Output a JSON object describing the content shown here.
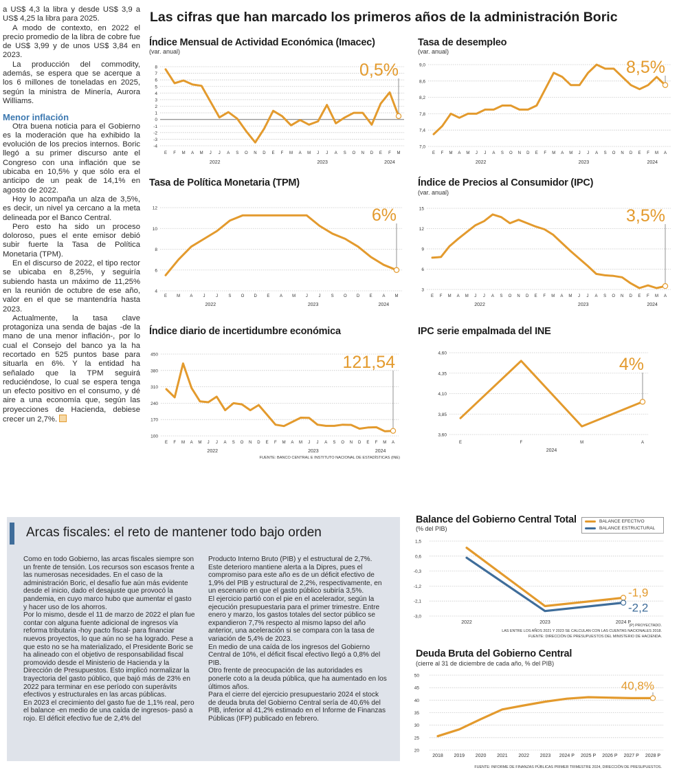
{
  "article": {
    "paragraphs_top": [
      "a US$ 4,3 la libra y desde US$ 3,9 a US$ 4,25 la libra para 2025.",
      "A modo de contexto, en 2022 el precio promedio de la libra de cobre fue de US$ 3,99 y de unos US$ 3,84 en 2023.",
      "La producción del commodity, además, se espera que se acerque a los 6 millones de toneladas en 2025, según la ministra de Minería, Aurora Williams."
    ],
    "subheading": "Menor inflación",
    "paragraphs_bottom": [
      "Otra buena noticia para el Gobierno es la moderación que ha exhibido la evolución de los precios internos. Boric llegó a su primer discurso ante el Congreso con una inflación que se ubicaba en 10,5% y que sólo era el anticipo de un peak de 14,1% en agosto de 2022.",
      "Hoy lo acompaña un alza de 3,5%, es decir, un nivel ya cercano a la meta delineada por el Banco Central.",
      "Pero esto ha sido un proceso doloroso, pues el ente emisor debió subir fuerte la Tasa de Política Monetaria (TPM).",
      "En el discurso de 2022, el tipo rector se ubicaba en 8,25%, y seguiría subiendo hasta un máximo de 11,25% en la reunión de octubre de ese año, valor en el que se mantendría hasta 2023.",
      "Actualmente, la tasa clave protagoniza una senda de bajas -de la mano de una menor inflación-, por lo cual el Consejo del banco ya la ha recortado en 525 puntos base para situarla en 6%. Y la entidad ha señalado que la TPM seguirá reduciéndose, lo cual se espera tenga un efecto positivo en el consumo, y dé aire a una economía que, según las proyecciones de Hacienda, debiese crecer un 2,7%."
    ]
  },
  "main_title": "Las cifras que han marcado los primeros años de la administración Boric",
  "source_top": "FUENTE: BANCO CENTRAL E INSTITUTO NACIONAL DE ESTADÍSTICAS (INE)",
  "fiscal": {
    "title": "Arcas fiscales: el reto de mantener todo bajo orden",
    "col1": [
      "Como en todo Gobierno, las arcas fiscales siempre son un frente de tensión. Los recursos son escasos frente a las numerosas necesidades. En el caso de la administración Boric, el desafío fue aún más evidente desde el inicio, dado el desajuste que provocó la pandemia, en cuyo marco hubo que aumentar el gasto y hacer uso de los ahorros.",
      "Por lo mismo, desde el 11 de marzo de 2022 el plan fue contar con alguna fuente adicional de ingresos vía reforma tributaria -hoy pacto fiscal- para financiar nuevos proyectos, lo que aún no se ha logrado. Pese a que esto no se ha materializado, el Presidente Boric se ha alineado con el objetivo de responsabilidad fiscal promovido desde el Ministerio de Hacienda y la Dirección de Presupuestos. Esto implicó normalizar la trayectoria del gasto público, que bajó más de 23% en 2022 para terminar en ese período con superávits efectivos y estructurales en las arcas públicas.",
      "En 2023 el crecimiento del gasto fue de 1,1% real, pero el balance -en medio de una caída de ingresos- pasó a rojo. El déficit efectivo fue de 2,4% del"
    ],
    "col2": [
      "Producto Interno Bruto (PIB) y el estructural de 2,7%. Este deterioro mantiene alerta a la Dipres, pues el compromiso para este año es de un déficit efectivo de 1,9% del PIB y estructural de 2,2%, respectivamente, en un escenario en que el gasto público subiría 3,5%.",
      "El ejercicio partió con el pie en el acelerador, según la ejecución presupuestaria para el primer trimestre. Entre enero y marzo, los gastos totales del sector público se expandieron 7,7% respecto al mismo lapso del año anterior, una aceleración si se compara con la tasa de variación de 5,4% de 2023.",
      "En medio de una caída de los ingresos del Gobierno Central de 10%, el déficit fiscal efectivo llegó a 0,8% del PIB.",
      "Otro frente de preocupación de las autoridades es ponerle coto a la deuda pública, que ha aumentado en los últimos años.",
      "Para el cierre del ejercicio presupuestario 2024 el stock de deuda bruta del Gobierno Central sería de 40,6% del PIB, inferior al 41,2% estimado en el Informe de Finanzas Públicas (IFP) publicado en febrero."
    ]
  },
  "colors": {
    "orange": "#e39a2d",
    "blue": "#3f6d9a",
    "box": "#dfe3ea",
    "subheading": "#3c78b0"
  },
  "chart_data": [
    {
      "type": "line",
      "title": "Índice Mensual de Actividad Económica (Imacec)",
      "subtitle": "(var. anual)",
      "categories": [
        "E",
        "F",
        "M",
        "A",
        "M",
        "J",
        "J",
        "A",
        "S",
        "O",
        "N",
        "D",
        "E",
        "F",
        "M",
        "A",
        "M",
        "J",
        "J",
        "A",
        "S",
        "O",
        "N",
        "D",
        "E",
        "F",
        "M"
      ],
      "year_groups": [
        {
          "label": "2022",
          "from": 0,
          "to": 11
        },
        {
          "label": "2023",
          "from": 12,
          "to": 23
        },
        {
          "label": "2024",
          "from": 24,
          "to": 26
        }
      ],
      "yticks": [
        "8",
        "7",
        "6",
        "5",
        "4",
        "3",
        "2",
        "1",
        "0",
        "-1",
        "-2",
        "-3",
        "-4"
      ],
      "ylim": [
        -4,
        8
      ],
      "zero_line": true,
      "series": [
        {
          "values": [
            7.6,
            5.5,
            5.9,
            5.3,
            5.1,
            2.7,
            0.3,
            1.1,
            0.1,
            -1.8,
            -3.5,
            -1.4,
            1.3,
            0.5,
            -0.9,
            -0.1,
            -0.8,
            -0.3,
            2.2,
            -0.6,
            0.3,
            1.0,
            1.0,
            -0.8,
            2.4,
            4.1,
            0.5
          ],
          "color": "#e39a2d"
        }
      ],
      "highlight": "0,5%"
    },
    {
      "type": "line",
      "title": "Tasa de desempleo",
      "subtitle": "(var. anual)",
      "categories": [
        "E",
        "F",
        "M",
        "A",
        "M",
        "J",
        "J",
        "A",
        "S",
        "O",
        "N",
        "D",
        "E",
        "F",
        "M",
        "A",
        "M",
        "J",
        "J",
        "A",
        "S",
        "O",
        "N",
        "D",
        "E",
        "F",
        "M",
        "A"
      ],
      "year_groups": [
        {
          "label": "2022",
          "from": 0,
          "to": 11
        },
        {
          "label": "2023",
          "from": 12,
          "to": 23
        },
        {
          "label": "2024",
          "from": 24,
          "to": 27
        }
      ],
      "yticks": [
        "9,0",
        "8,6",
        "8,2",
        "7,8",
        "7,4",
        "7,0"
      ],
      "ylim": [
        7.0,
        9.0
      ],
      "series": [
        {
          "values": [
            7.3,
            7.5,
            7.8,
            7.7,
            7.8,
            7.8,
            7.9,
            7.9,
            8.0,
            8.0,
            7.9,
            7.9,
            8.0,
            8.4,
            8.8,
            8.7,
            8.5,
            8.5,
            8.8,
            9.0,
            8.9,
            8.9,
            8.7,
            8.5,
            8.4,
            8.5,
            8.7,
            8.5
          ],
          "color": "#e39a2d"
        }
      ],
      "highlight": "8,5%"
    },
    {
      "type": "line",
      "title": "Tasa de Política Monetaria (TPM)",
      "subtitle": "",
      "categories": [
        "E",
        "M",
        "A",
        "J",
        "J",
        "S",
        "O",
        "D",
        "E",
        "A",
        "M",
        "J",
        "J",
        "S",
        "O",
        "D",
        "E",
        "A",
        "M"
      ],
      "year_groups": [
        {
          "label": "2022",
          "from": 0,
          "to": 7
        },
        {
          "label": "2023",
          "from": 8,
          "to": 15
        },
        {
          "label": "2024",
          "from": 16,
          "to": 18
        }
      ],
      "yticks": [
        "12",
        "10",
        "8",
        "6",
        "4"
      ],
      "ylim": [
        4,
        12
      ],
      "series": [
        {
          "values": [
            5.5,
            7.0,
            8.25,
            9.0,
            9.75,
            10.75,
            11.25,
            11.25,
            11.25,
            11.25,
            11.25,
            11.25,
            10.25,
            9.5,
            9.0,
            8.25,
            7.25,
            6.5,
            6.0
          ],
          "color": "#e39a2d"
        }
      ],
      "highlight": "6%"
    },
    {
      "type": "line",
      "title": "Índice de Precios al Consumidor (IPC)",
      "subtitle": "(var. anual)",
      "categories": [
        "E",
        "F",
        "M",
        "A",
        "M",
        "J",
        "J",
        "A",
        "S",
        "O",
        "N",
        "D",
        "E",
        "F",
        "M",
        "A",
        "M",
        "J",
        "J",
        "A",
        "S",
        "O",
        "N",
        "D",
        "E",
        "F",
        "M",
        "A"
      ],
      "year_groups": [
        {
          "label": "2022",
          "from": 0,
          "to": 11
        },
        {
          "label": "2023",
          "from": 12,
          "to": 23
        },
        {
          "label": "2024",
          "from": 24,
          "to": 27
        }
      ],
      "yticks": [
        "15",
        "12",
        "9",
        "6",
        "3"
      ],
      "ylim": [
        3,
        15
      ],
      "series": [
        {
          "values": [
            7.7,
            7.8,
            9.4,
            10.5,
            11.5,
            12.5,
            13.1,
            14.1,
            13.7,
            12.8,
            13.3,
            12.8,
            12.3,
            11.9,
            11.1,
            9.9,
            8.7,
            7.6,
            6.5,
            5.3,
            5.1,
            5.0,
            4.8,
            3.9,
            3.2,
            3.6,
            3.2,
            3.5
          ],
          "color": "#e39a2d"
        }
      ],
      "highlight": "3,5%"
    },
    {
      "type": "line",
      "title": "Índice diario de incertidumbre económica",
      "subtitle": "",
      "categories": [
        "E",
        "F",
        "M",
        "A",
        "M",
        "J",
        "J",
        "A",
        "S",
        "O",
        "N",
        "D",
        "E",
        "F",
        "M",
        "A",
        "M",
        "J",
        "J",
        "A",
        "S",
        "O",
        "N",
        "D",
        "E",
        "F",
        "M",
        "A"
      ],
      "year_groups": [
        {
          "label": "2022",
          "from": 0,
          "to": 11
        },
        {
          "label": "2023",
          "from": 12,
          "to": 23
        },
        {
          "label": "2024",
          "from": 24,
          "to": 27
        }
      ],
      "yticks": [
        "450",
        "380",
        "310",
        "240",
        "170",
        "100"
      ],
      "ylim": [
        100,
        450
      ],
      "series": [
        {
          "values": [
            300,
            265,
            410,
            305,
            248,
            244,
            268,
            210,
            240,
            235,
            210,
            232,
            190,
            148,
            142,
            160,
            178,
            177,
            148,
            143,
            143,
            148,
            147,
            131,
            136,
            137,
            120,
            121.54
          ],
          "color": "#e39a2d"
        }
      ],
      "highlight": "121,54"
    },
    {
      "type": "line",
      "title": "IPC serie empalmada del INE",
      "subtitle": "",
      "categories": [
        "E",
        "F",
        "M",
        "A"
      ],
      "year_groups": [
        {
          "label": "2024",
          "from": 0,
          "to": 3
        }
      ],
      "yticks": [
        "4,60",
        "4,35",
        "4,10",
        "3,85",
        "3,60"
      ],
      "ylim": [
        3.6,
        4.6
      ],
      "series": [
        {
          "values": [
            3.8,
            4.5,
            3.7,
            4.0
          ],
          "color": "#e39a2d"
        }
      ],
      "highlight": "4%"
    },
    {
      "type": "line",
      "title": "Balance del Gobierno Central Total",
      "subtitle": "(% del PIB)",
      "categories": [
        "2022",
        "2023",
        "2024 P"
      ],
      "yticks": [
        "1,5",
        "0,6",
        "-0,3",
        "-1,2",
        "-2,1",
        "-3,0"
      ],
      "ylim": [
        -3.0,
        1.5
      ],
      "series": [
        {
          "name": "BALANCE EFECTIVO",
          "values": [
            1.1,
            -2.4,
            -1.9
          ],
          "color": "#e39a2d",
          "end_label": "-1,9"
        },
        {
          "name": "BALANCE ESTRUCTURAL",
          "values": [
            0.5,
            -2.7,
            -2.2
          ],
          "color": "#3f6d9a",
          "end_label": "-2,2"
        }
      ],
      "legend": "top-right",
      "notes": [
        "(P) PROYECTADO.",
        "LAS ENTRE LOS AÑOS 2021 Y 2023 SE CALCULAN  CON LAS CUENTAS NACIONALES 2018.",
        "FUENTE: DIRECCIÓN DE PRESUPUESTOS DEL MINISTERIO DE HACIENDA."
      ]
    },
    {
      "type": "line",
      "title": "Deuda Bruta del Gobierno Central",
      "subtitle": "(cierre al 31 de diciembre de cada año, % del PIB)",
      "categories": [
        "2018",
        "2019",
        "2020",
        "2021",
        "2022",
        "2023",
        "2024 P",
        "2025 P",
        "2026 P",
        "2027 P",
        "2028 P"
      ],
      "yticks": [
        "50",
        "45",
        "40",
        "35",
        "30",
        "25",
        "20"
      ],
      "ylim": [
        20,
        50
      ],
      "series": [
        {
          "values": [
            25.6,
            28.3,
            32.4,
            36.3,
            37.9,
            39.4,
            40.6,
            41.2,
            41.0,
            40.8,
            40.8
          ],
          "color": "#e39a2d"
        }
      ],
      "highlight": "40,8%",
      "notes": [
        "FUENTE: INFORME DE FINANZAS PÚBLICAS PRIMER TRIMESTRE 2024, DIRECCIÓN DE PRESUPUESTOS."
      ]
    }
  ]
}
